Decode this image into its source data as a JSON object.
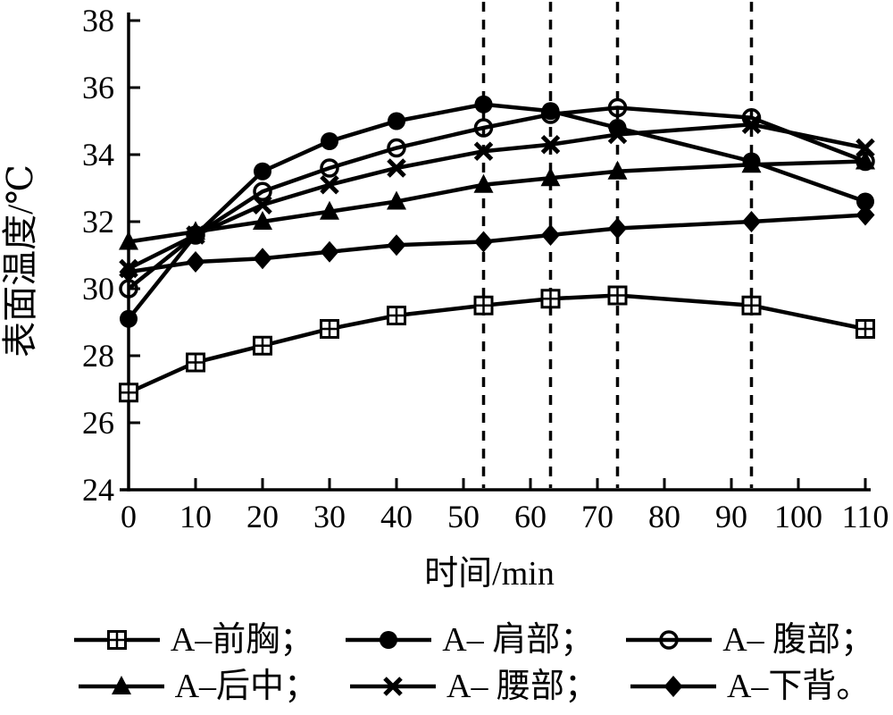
{
  "chart_data": {
    "type": "line",
    "title": "",
    "xlabel": "时间/min",
    "ylabel": "表面温度/℃",
    "xlim": [
      0,
      110
    ],
    "ylim": [
      24,
      38
    ],
    "x_ticks": [
      0,
      10,
      20,
      30,
      40,
      50,
      60,
      70,
      80,
      90,
      100,
      110
    ],
    "y_ticks": [
      24,
      26,
      28,
      30,
      32,
      34,
      36,
      38
    ],
    "grid": "off",
    "line_color": "#000000",
    "background_color": "#ffffff",
    "vlines": [
      53,
      63,
      73,
      93
    ],
    "vline_style": "dashed",
    "x": [
      0,
      10,
      20,
      30,
      40,
      53,
      63,
      73,
      93,
      110
    ],
    "series": [
      {
        "name": "A-前胸",
        "label": "A–前胸；",
        "marker": "square-plus",
        "values": [
          26.9,
          27.8,
          28.3,
          28.8,
          29.2,
          29.5,
          29.7,
          29.8,
          29.5,
          28.8
        ]
      },
      {
        "name": "A-肩部",
        "label": "A– 肩部；",
        "marker": "circle-filled",
        "values": [
          29.1,
          31.6,
          33.5,
          34.4,
          35.0,
          35.5,
          35.3,
          34.8,
          33.8,
          32.6
        ]
      },
      {
        "name": "A-腹部",
        "label": "A– 腹部；",
        "marker": "circle-open",
        "values": [
          30.0,
          31.6,
          32.9,
          33.6,
          34.2,
          34.8,
          35.2,
          35.4,
          35.1,
          33.8
        ]
      },
      {
        "name": "A-后中",
        "label": "A–后中；",
        "marker": "triangle-filled",
        "values": [
          31.4,
          31.7,
          32.0,
          32.3,
          32.6,
          33.1,
          33.3,
          33.5,
          33.7,
          33.8
        ]
      },
      {
        "name": "A-腰部",
        "label": "A– 腰部；",
        "marker": "x-cross",
        "values": [
          30.6,
          31.6,
          32.5,
          33.1,
          33.6,
          34.1,
          34.3,
          34.6,
          34.9,
          34.2
        ]
      },
      {
        "name": "A-下背",
        "label": "A–下背。",
        "marker": "diamond-filled",
        "values": [
          30.5,
          30.8,
          30.9,
          31.1,
          31.3,
          31.4,
          31.6,
          31.8,
          32.0,
          32.2
        ]
      }
    ],
    "legend_rows": [
      [
        0,
        1,
        2
      ],
      [
        3,
        4,
        5
      ]
    ],
    "legend_position": "bottom"
  }
}
